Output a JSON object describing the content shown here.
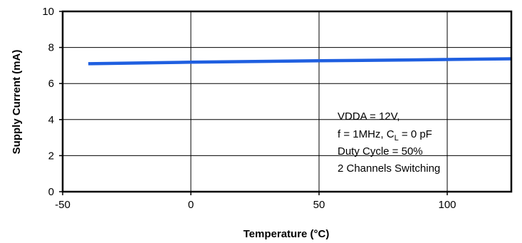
{
  "chart_data": {
    "type": "line",
    "xlabel": "Temperature (°C)",
    "ylabel": "Supply Current (mA)",
    "xlim": [
      -50,
      125
    ],
    "ylim": [
      0,
      10
    ],
    "x_ticks": [
      -50,
      0,
      50,
      100
    ],
    "y_ticks": [
      0,
      2,
      4,
      6,
      8,
      10
    ],
    "x_tick_labels": [
      "-50",
      "0",
      "50",
      "100"
    ],
    "y_tick_labels": [
      "0",
      "2",
      "4",
      "6",
      "8",
      "10"
    ],
    "grid": true,
    "series": [
      {
        "color": "#1f5fe0",
        "x": [
          -40,
          0,
          25,
          50,
          85,
          125
        ],
        "y": [
          7.1,
          7.18,
          7.22,
          7.26,
          7.31,
          7.37
        ]
      }
    ],
    "annotations": [
      {
        "text": "VDDA = 12V,"
      },
      {
        "text_before": "f = 1MHz, C",
        "subscript": "L",
        "text_after": " = 0 pF"
      },
      {
        "text": "Duty Cycle = 50%"
      },
      {
        "text": "2 Channels Switching"
      }
    ]
  }
}
